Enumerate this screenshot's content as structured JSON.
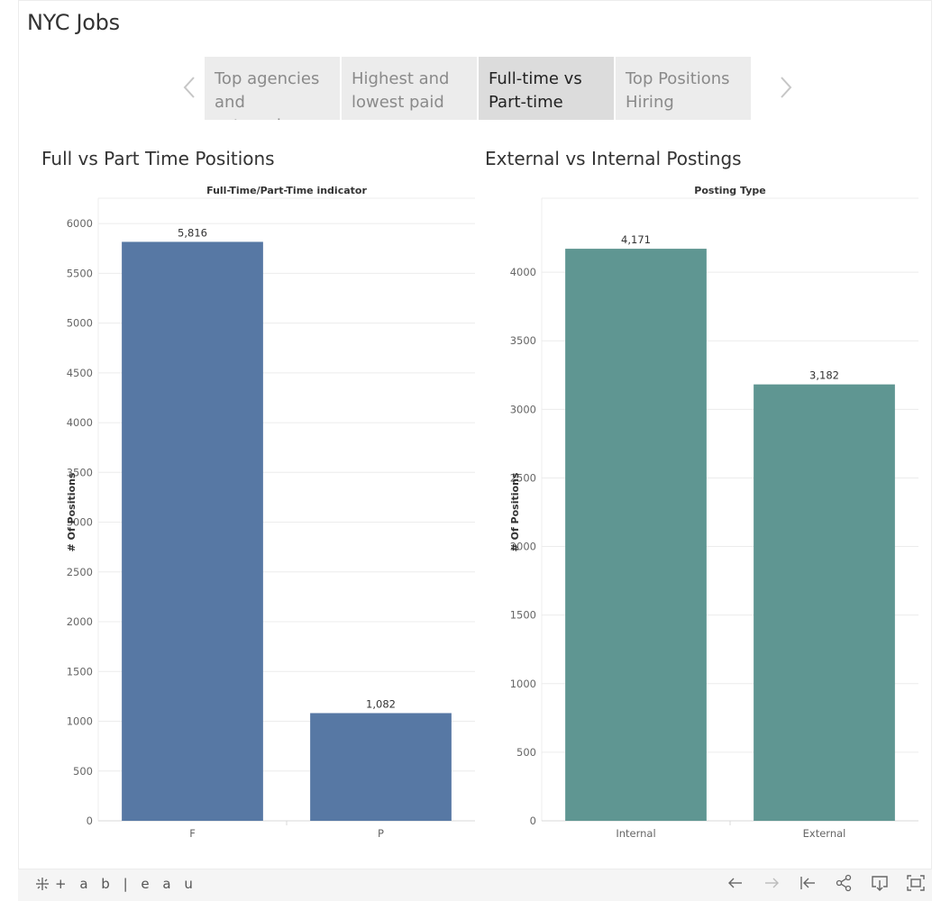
{
  "app": {
    "title": "NYC Jobs"
  },
  "story": {
    "tabs": [
      {
        "label": "Top agencies and catagories",
        "active": false
      },
      {
        "label": "Highest and lowest paid",
        "active": false
      },
      {
        "label": "Full-time vs Part-time",
        "active": true
      },
      {
        "label": "Top Positions Hiring",
        "active": false
      }
    ]
  },
  "colors": {
    "left_bars": "#5778a4",
    "right_bars": "#5f9692",
    "grid": "#ececec"
  },
  "chart_data": [
    {
      "type": "bar",
      "title": "Full vs Part Time Positions",
      "header": "Full-Time/Part-Time indicator",
      "categories": [
        "F",
        "P"
      ],
      "values": [
        5816,
        1082
      ],
      "value_labels": [
        "5,816",
        "1,082"
      ],
      "ylabel": "# Of Positions",
      "ylim": [
        0,
        6200
      ],
      "yticks": [
        0,
        500,
        1000,
        1500,
        2000,
        2500,
        3000,
        3500,
        4000,
        4500,
        5000,
        5500,
        6000
      ],
      "grid": true
    },
    {
      "type": "bar",
      "title": "External vs Internal Postings",
      "header": "Posting Type",
      "categories": [
        "Internal",
        "External"
      ],
      "values": [
        4171,
        3182
      ],
      "value_labels": [
        "4,171",
        "3,182"
      ],
      "ylabel": "# Of Positions",
      "ylim": [
        0,
        4500
      ],
      "yticks": [
        0,
        500,
        1000,
        1500,
        2000,
        2500,
        3000,
        3500,
        4000
      ],
      "grid": true
    }
  ],
  "footer": {
    "brand": "+ a b | e a u",
    "icons": [
      "undo-icon",
      "redo-icon",
      "revert-icon",
      "share-icon",
      "download-icon",
      "fullscreen-icon"
    ]
  }
}
